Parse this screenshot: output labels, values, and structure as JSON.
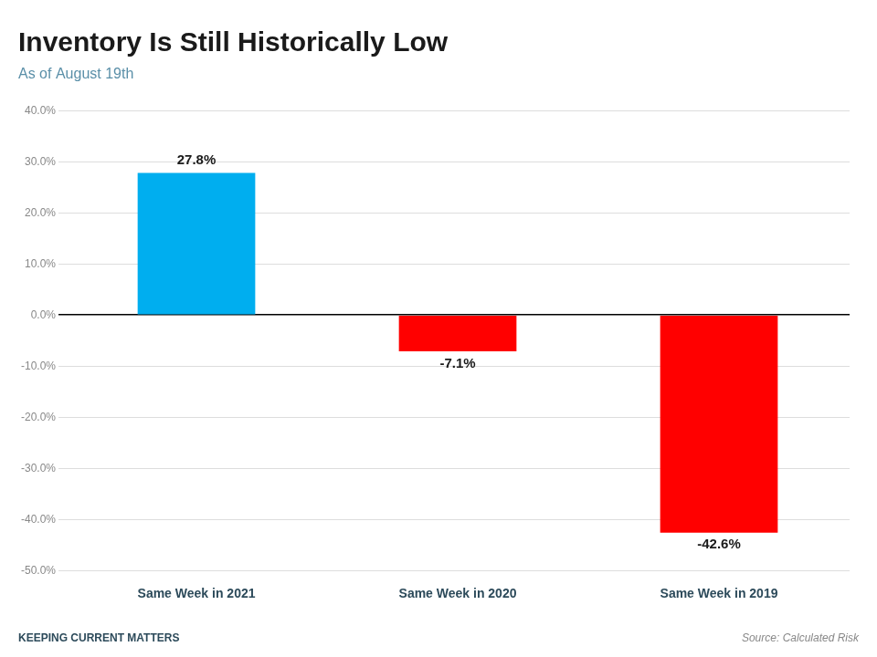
{
  "chart_data": {
    "type": "bar",
    "title": "Inventory Is Still Historically Low",
    "subtitle": "As of August 19th",
    "annotations": [
      "Source: Calculated Risk",
      "KEEPING CURRENT MATTERS"
    ],
    "categories": [
      "Same Week in 2021",
      "Same Week in 2020",
      "Same Week in 2019"
    ],
    "values": [
      27.8,
      -7.1,
      -42.6
    ],
    "value_labels": [
      "27.8%",
      "-7.1%",
      "-42.6%"
    ],
    "data_labels": true,
    "colors": [
      "#00AEEF",
      "#FF0000",
      "#FF0000"
    ],
    "ylim": [
      -50,
      40
    ],
    "yticks": [
      {
        "value": -50,
        "label": "-50.0%"
      },
      {
        "value": -40,
        "label": "-40.0%"
      },
      {
        "value": -30,
        "label": "-30.0%"
      },
      {
        "value": -20,
        "label": "-20.0%"
      },
      {
        "value": -10,
        "label": "-10.0%"
      },
      {
        "value": 0,
        "label": "0.0%"
      },
      {
        "value": 10,
        "label": "10.0%"
      },
      {
        "value": 20,
        "label": "20.0%"
      },
      {
        "value": 30,
        "label": "30.0%"
      },
      {
        "value": 40,
        "label": "40.0%"
      }
    ],
    "grid": true
  }
}
